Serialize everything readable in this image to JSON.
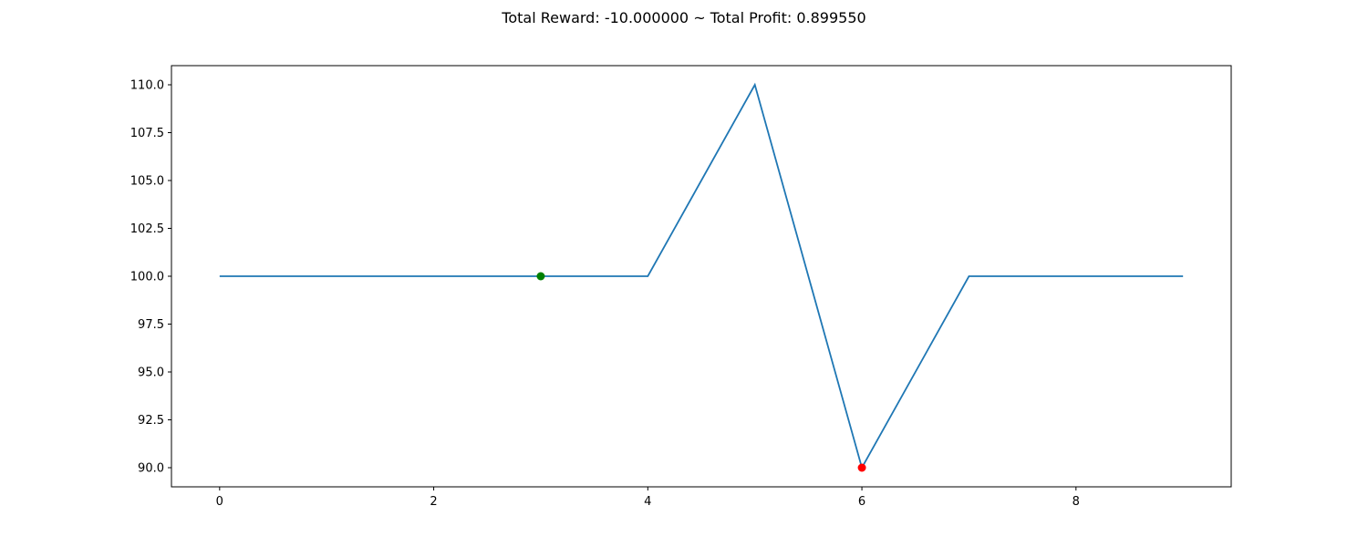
{
  "chart_data": {
    "type": "line",
    "title": "Total Reward: -10.000000 ~ Total Profit: 0.899550",
    "xlabel": "",
    "ylabel": "",
    "x": [
      0,
      1,
      2,
      3,
      4,
      5,
      6,
      7,
      8,
      9
    ],
    "series": [
      {
        "values": [
          100,
          100,
          100,
          100,
          100,
          110,
          90,
          100,
          100,
          100
        ],
        "color": "#1f77b4"
      }
    ],
    "markers": [
      {
        "x": 3,
        "y": 100,
        "color": "#008000"
      },
      {
        "x": 6,
        "y": 90,
        "color": "#ff0000"
      }
    ],
    "xlim": [
      -0.45,
      9.45
    ],
    "ylim": [
      89,
      111
    ],
    "xticks": [
      0,
      2,
      4,
      6,
      8
    ],
    "xtick_labels": [
      "0",
      "2",
      "4",
      "6",
      "8"
    ],
    "yticks": [
      90,
      92.5,
      95,
      97.5,
      100,
      102.5,
      105,
      107.5,
      110
    ],
    "ytick_labels": [
      "90.0",
      "92.5",
      "95.0",
      "97.5",
      "100.0",
      "102.5",
      "105.0",
      "107.5",
      "110.0"
    ],
    "grid": false,
    "legend": "none"
  }
}
